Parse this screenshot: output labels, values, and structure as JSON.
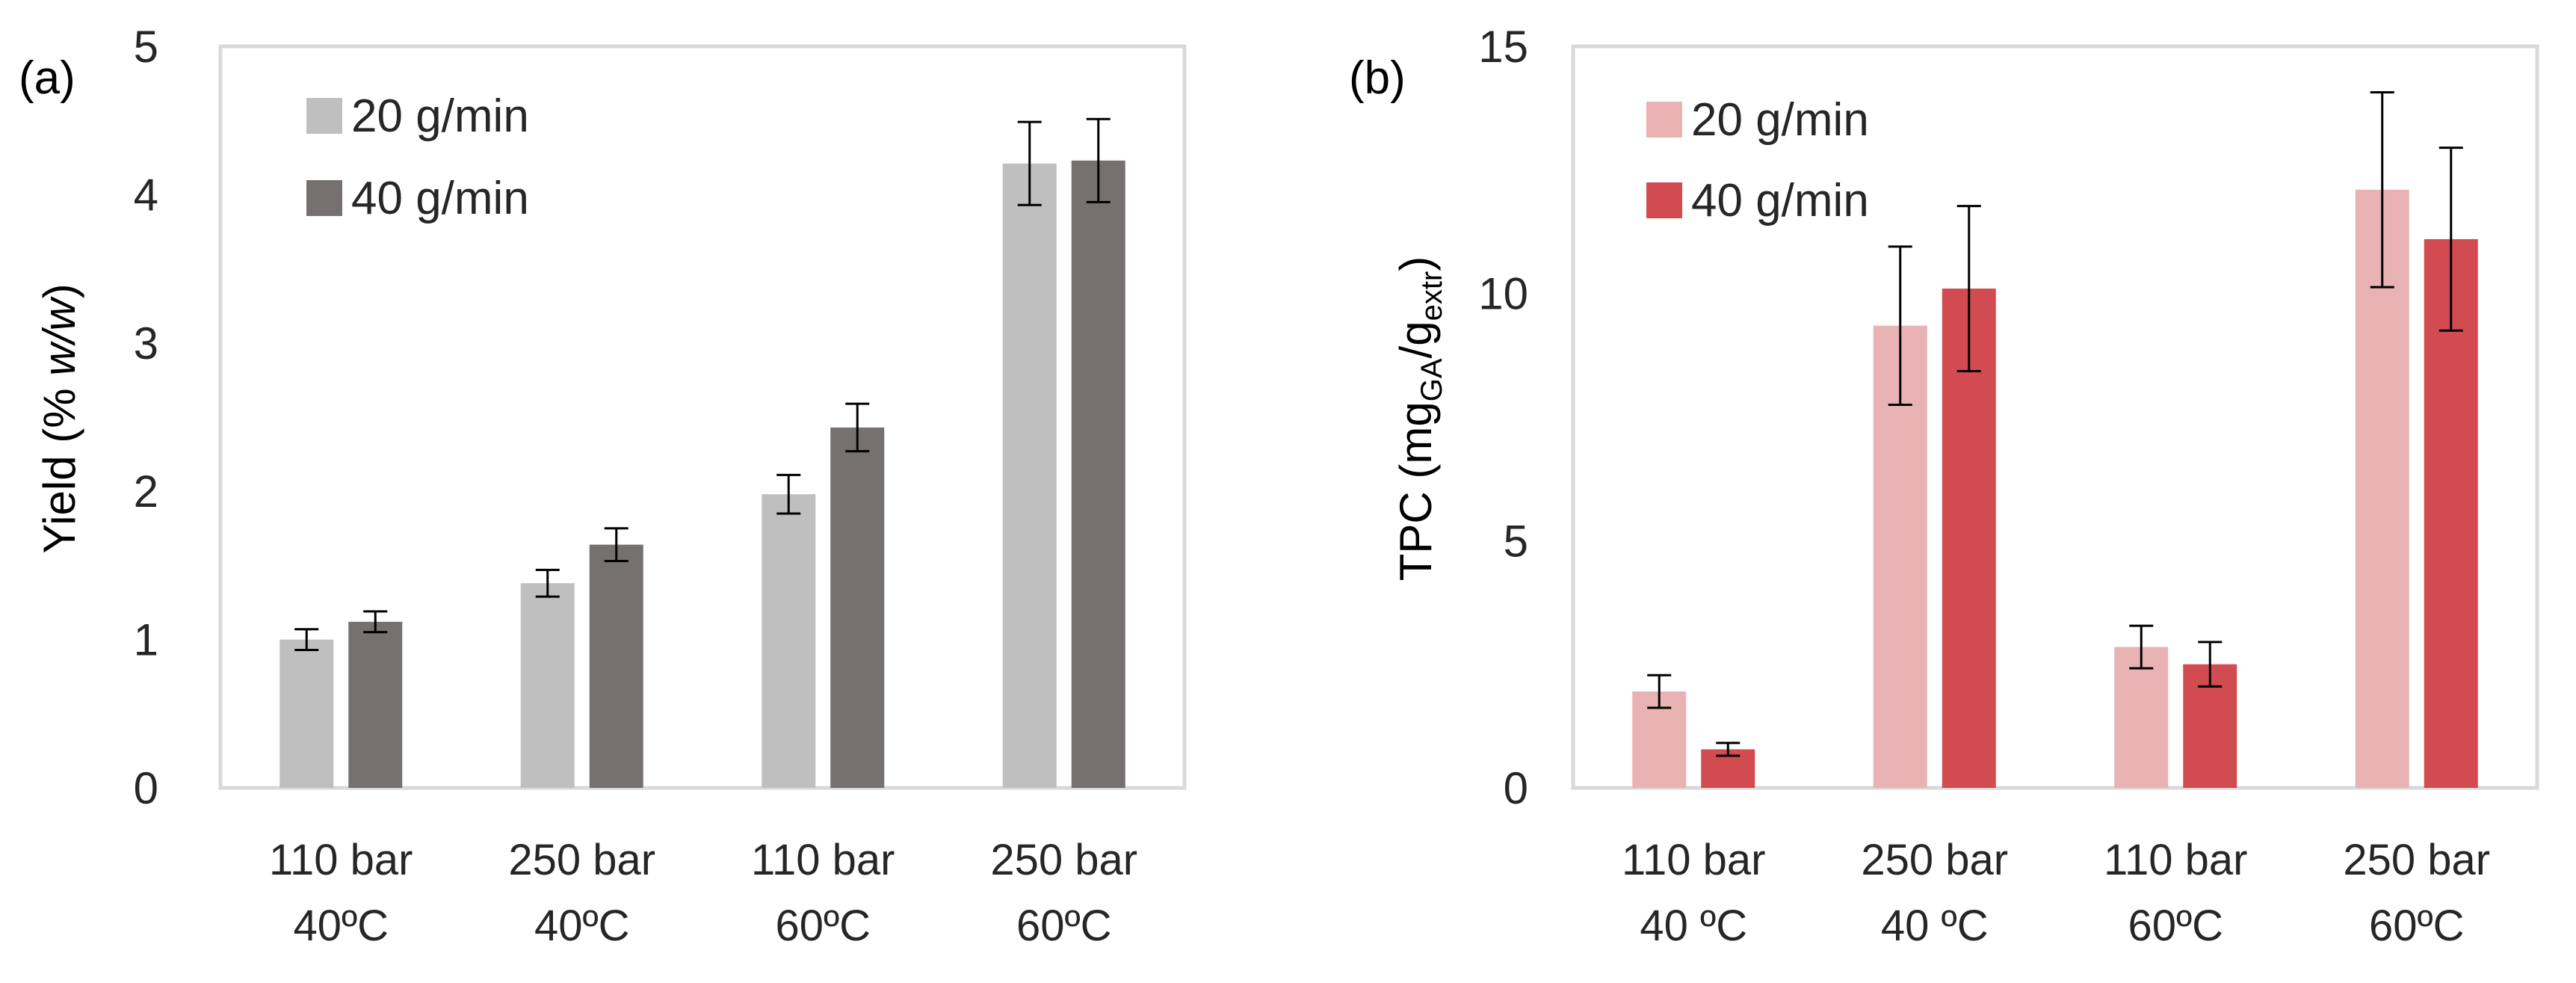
{
  "chart_data": [
    {
      "type": "bar",
      "panel_label": "(a)",
      "ylabel": "Yield (% w/w)",
      "ylabel_parts": [
        "Yield (% ",
        "w/w",
        ")"
      ],
      "ylim": [
        0,
        5
      ],
      "yticks": [
        "0",
        "1",
        "2",
        "3",
        "4",
        "5"
      ],
      "categories": [
        [
          "110 bar",
          "40ºC"
        ],
        [
          "250 bar",
          "40ºC"
        ],
        [
          "110 bar",
          "60ºC"
        ],
        [
          "250 bar",
          "60ºC"
        ]
      ],
      "series": [
        {
          "name": "20 g/min",
          "color": "#bfbfbf",
          "values": [
            1.0,
            1.38,
            1.98,
            4.21
          ],
          "errors": [
            0.07,
            0.09,
            0.13,
            0.28
          ]
        },
        {
          "name": "40 g/min",
          "color": "#767171",
          "values": [
            1.12,
            1.64,
            2.43,
            4.23
          ],
          "errors": [
            0.07,
            0.11,
            0.16,
            0.28
          ]
        }
      ],
      "legend_position": "top-left",
      "grid": false
    },
    {
      "type": "bar",
      "panel_label": "(b)",
      "ylabel": "TPC (mgGA/gextr)",
      "ylabel_parts": [
        "TPC (mg",
        "GA",
        "/g",
        "extr",
        ")"
      ],
      "ylim": [
        0,
        15
      ],
      "yticks": [
        "0",
        "5",
        "10",
        "15"
      ],
      "categories": [
        [
          "110 bar",
          "40 ºC"
        ],
        [
          "250 bar",
          "40 ºC"
        ],
        [
          "110 bar",
          "60ºC"
        ],
        [
          "250 bar",
          "60ºC"
        ]
      ],
      "series": [
        {
          "name": "20 g/min",
          "color": "#eab3b3",
          "values": [
            1.95,
            9.35,
            2.85,
            12.1
          ],
          "errors": [
            0.33,
            1.6,
            0.43,
            1.97
          ]
        },
        {
          "name": "40 g/min",
          "color": "#d14b50",
          "values": [
            0.78,
            10.1,
            2.5,
            11.1
          ],
          "errors": [
            0.13,
            1.67,
            0.45,
            1.85
          ]
        }
      ],
      "legend_position": "top-left",
      "grid": false
    }
  ]
}
